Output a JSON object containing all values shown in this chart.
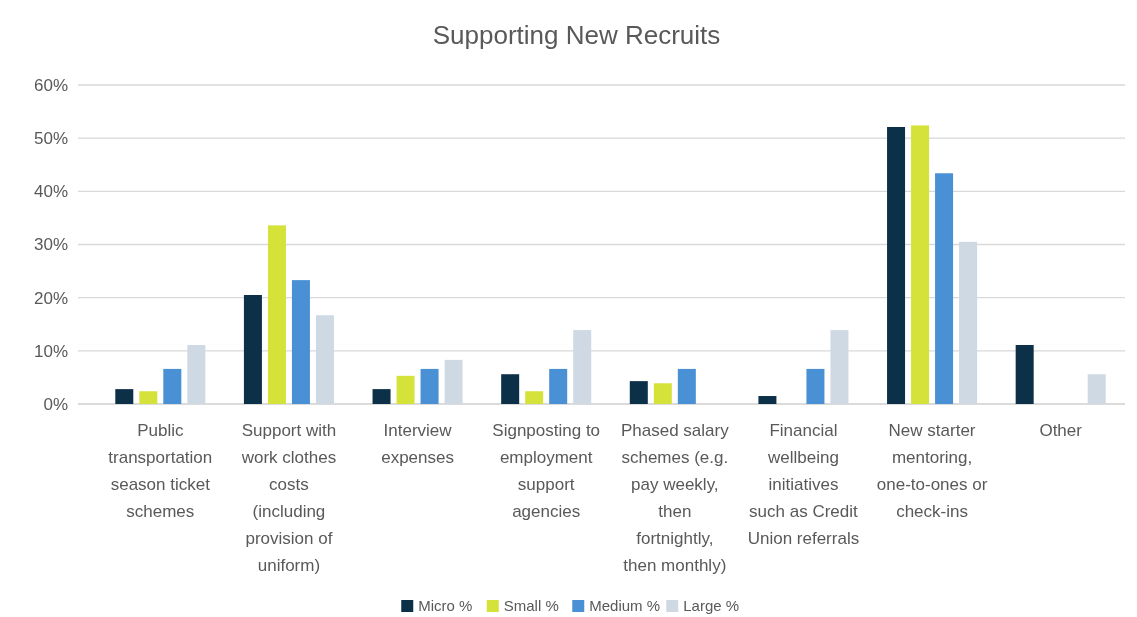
{
  "chart_data": {
    "type": "bar",
    "title": "Supporting New Recruits",
    "categories": [
      "Public transportation season ticket schemes",
      "Support with work clothes costs (including provision of uniform)",
      "Interview expenses",
      "Signposting to employment support agencies",
      "Phased salary schemes (e.g. pay weekly, then fortnightly, then monthly)",
      "Financial wellbeing initiatives such as Credit Union referrals",
      "New starter mentoring, one-to-ones or check-ins",
      "Other"
    ],
    "series": [
      {
        "name": "Micro %",
        "color": "#0d3049",
        "values": [
          2.8,
          20.5,
          2.8,
          5.6,
          4.3,
          1.5,
          52.1,
          11.1
        ]
      },
      {
        "name": "Small %",
        "color": "#d4e23a",
        "values": [
          2.4,
          33.6,
          5.3,
          2.4,
          3.9,
          0,
          52.4,
          0
        ]
      },
      {
        "name": "Medium %",
        "color": "#4a90d4",
        "values": [
          6.6,
          23.3,
          6.6,
          6.6,
          6.6,
          6.6,
          43.4,
          0
        ]
      },
      {
        "name": "Large %",
        "color": "#cfd9e3",
        "values": [
          11.1,
          16.7,
          8.3,
          13.9,
          0,
          13.9,
          30.5,
          5.6
        ]
      }
    ],
    "ylim": [
      0,
      60
    ],
    "yticks": [
      {
        "value": 0,
        "label": "0%"
      },
      {
        "value": 10,
        "label": "10%"
      },
      {
        "value": 20,
        "label": "20%"
      },
      {
        "value": 30,
        "label": "30%"
      },
      {
        "value": 40,
        "label": "40%"
      },
      {
        "value": 50,
        "label": "50%"
      },
      {
        "value": 60,
        "label": "60%"
      }
    ],
    "grid": "y",
    "legend": "bottom"
  }
}
